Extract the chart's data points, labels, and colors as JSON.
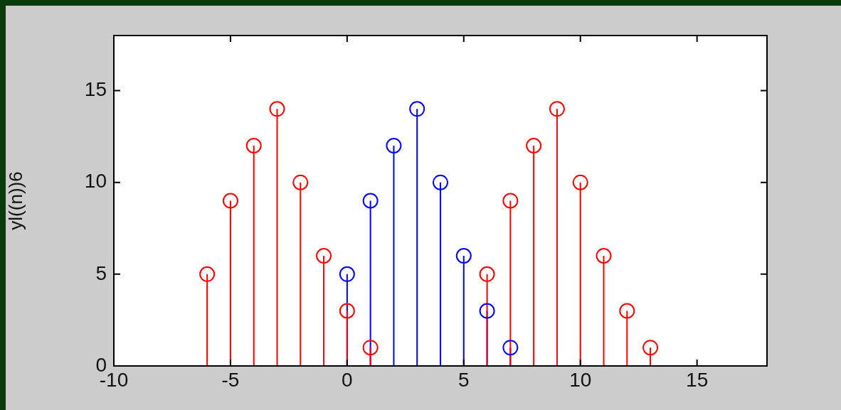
{
  "chart_data": {
    "type": "lollipop",
    "ylabel": "yl((n))6",
    "marker": "circle",
    "xlim": [
      -10,
      18
    ],
    "xticks": [
      -10,
      -5,
      0,
      5,
      10,
      15
    ],
    "ylim": [
      0,
      18
    ],
    "yticks": [
      0,
      5,
      10,
      15
    ],
    "series": [
      {
        "color": "#0000ff",
        "x": [
          0,
          1,
          2,
          3,
          4,
          5,
          6,
          7
        ],
        "values": [
          5,
          9,
          12,
          14,
          10,
          6,
          3,
          1
        ]
      },
      {
        "color": "#ff0000",
        "x": [
          -6,
          -5,
          -4,
          -3,
          -2,
          -1,
          0,
          1,
          6,
          7,
          8,
          9,
          10,
          11,
          12,
          13
        ],
        "values": [
          5,
          9,
          12,
          14,
          10,
          6,
          3,
          1,
          5,
          9,
          12,
          14,
          10,
          6,
          3,
          1
        ]
      }
    ]
  }
}
